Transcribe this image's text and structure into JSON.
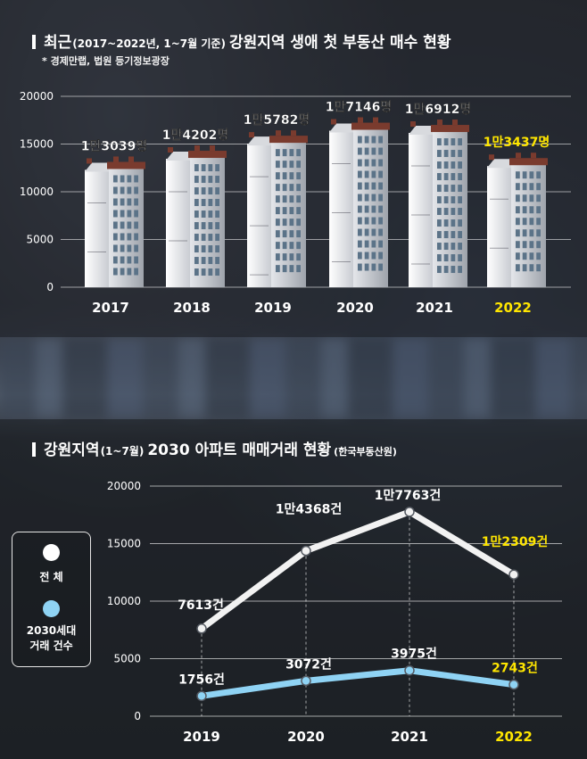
{
  "top_chart": {
    "title_main": "최근",
    "title_period": "(2017~2022년, 1~7월 기준)",
    "title_rest": "강원지역 생애 첫 부동산 매수 현황",
    "source": "* 경제만랩, 법원 등기정보광장",
    "chart_data": {
      "type": "bar",
      "categories": [
        "2017",
        "2018",
        "2019",
        "2020",
        "2021",
        "2022"
      ],
      "values": [
        13039,
        14202,
        15782,
        17146,
        16912,
        13437
      ],
      "value_labels": [
        "1만3039명",
        "1만4202명",
        "1만5782명",
        "1만7146명",
        "1만6912명",
        "1만3437명"
      ],
      "ylim": [
        0,
        20000
      ],
      "yticks": [
        "0",
        "5000",
        "10000",
        "15000",
        "20000"
      ],
      "grid": true,
      "highlight_category": "2022",
      "highlight_color": "#ffe600"
    }
  },
  "bottom_chart": {
    "title_main": "강원지역",
    "title_period": "(1~7월)",
    "title_rest": "2030 아파트 매매거래 현황",
    "source": "(한국부동산원)",
    "legend": {
      "total_label": "전  체",
      "young_label_line1": "2030세대",
      "young_label_line2": "거래 건수"
    },
    "chart_data": {
      "type": "line",
      "x": [
        "2019",
        "2020",
        "2021",
        "2022"
      ],
      "series": [
        {
          "name": "전 체",
          "values": [
            7613,
            14368,
            17763,
            12309
          ],
          "labels": [
            "7613건",
            "1만4368건",
            "1만7763건",
            "1만2309건"
          ],
          "color": "#f2f2f2"
        },
        {
          "name": "2030세대 거래 건수",
          "values": [
            1756,
            3072,
            3975,
            2743
          ],
          "labels": [
            "1756건",
            "3072건",
            "3975건",
            "2743건"
          ],
          "color": "#8fd3f4"
        }
      ],
      "ylim": [
        0,
        20000
      ],
      "yticks": [
        "0",
        "5000",
        "10000",
        "15000",
        "20000"
      ],
      "grid": true,
      "highlight_category": "2022",
      "highlight_color": "#ffe600"
    }
  }
}
